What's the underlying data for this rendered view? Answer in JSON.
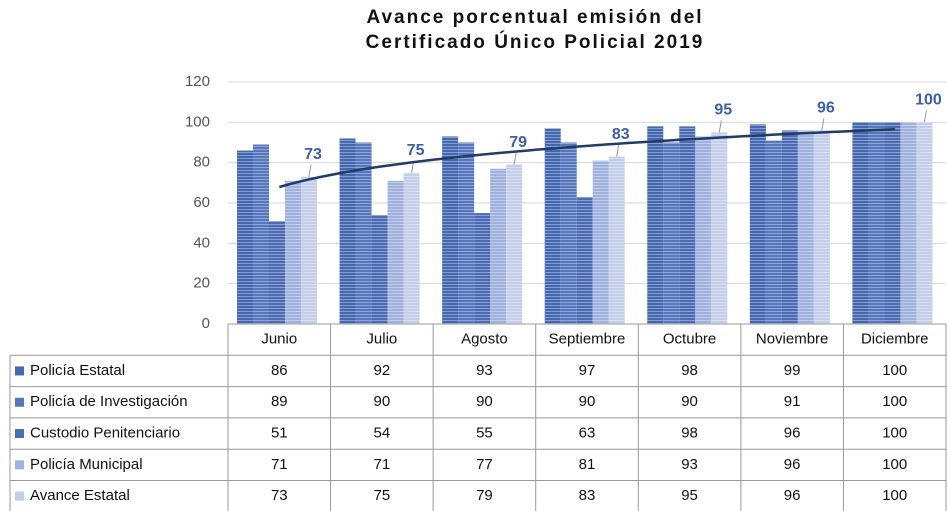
{
  "chart_data": {
    "type": "bar",
    "title": [
      "Avance porcentual emisión del",
      "Certificado Único Policial 2019"
    ],
    "categories": [
      "Junio",
      "Julio",
      "Agosto",
      "Septiembre",
      "Octubre",
      "Noviembre",
      "Diciembre"
    ],
    "series": [
      {
        "name": "Policía Estatal",
        "color": "#4468b0",
        "values": [
          86,
          92,
          93,
          97,
          98,
          99,
          100
        ]
      },
      {
        "name": "Policía de Investigación",
        "color": "#5676bd",
        "values": [
          89,
          90,
          90,
          90,
          90,
          91,
          100
        ]
      },
      {
        "name": "Custodio Penitenciario",
        "color": "#4b6cb4",
        "values": [
          51,
          54,
          55,
          63,
          98,
          96,
          100
        ]
      },
      {
        "name": "Policía Municipal",
        "color": "#9fb2de",
        "values": [
          71,
          71,
          77,
          81,
          93,
          96,
          100
        ]
      },
      {
        "name": "Avance Estatal",
        "color": "#c4cee8",
        "values": [
          73,
          75,
          79,
          83,
          95,
          96,
          100
        ]
      }
    ],
    "ylim": [
      0,
      120
    ],
    "yticks": [
      0,
      20,
      40,
      60,
      80,
      100,
      120
    ],
    "grid": true,
    "data_labels_series": 4
  }
}
